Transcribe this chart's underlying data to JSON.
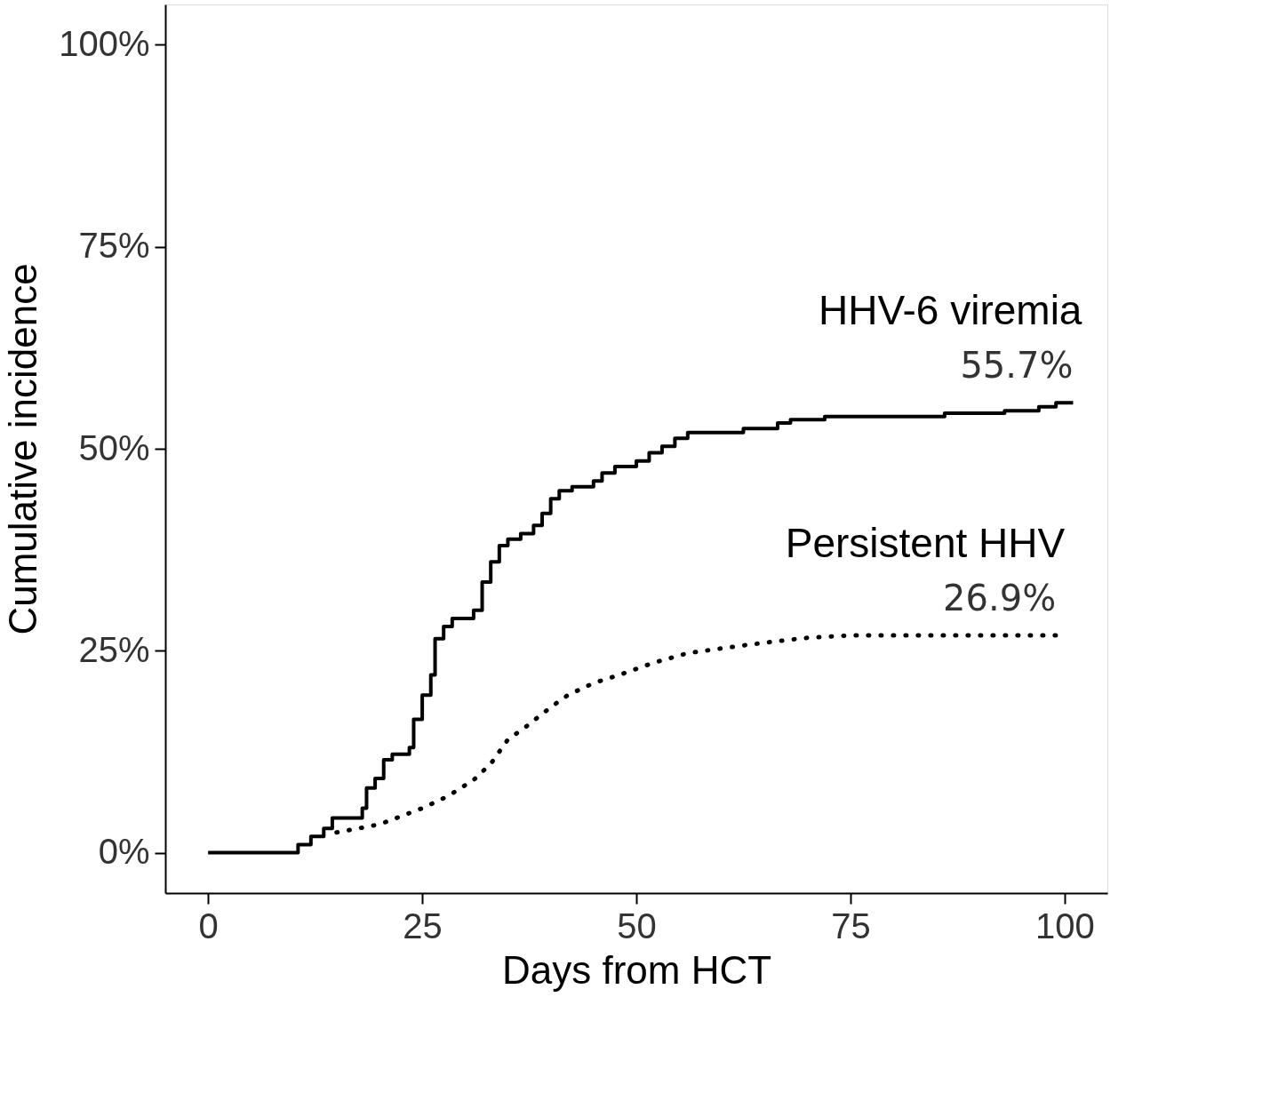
{
  "chart_data": {
    "type": "step",
    "xlabel": "Days from HCT",
    "ylabel": "Cumulative incidence",
    "xlim": [
      -5,
      105
    ],
    "xticks": [
      0,
      25,
      50,
      75,
      100
    ],
    "ylim": [
      -5,
      105
    ],
    "yticks": [
      {
        "value": 0,
        "label": "0%"
      },
      {
        "value": 25,
        "label": "25%"
      },
      {
        "value": 50,
        "label": "50%"
      },
      {
        "value": 75,
        "label": "75%"
      },
      {
        "value": 100,
        "label": "100%"
      }
    ],
    "grid": false,
    "series": [
      {
        "color": "#000000",
        "line_style": "solid",
        "x": [
          0,
          10.5,
          12,
          13.5,
          14.5,
          18,
          18.5,
          19.5,
          20.5,
          21.5,
          23.5,
          24,
          25,
          26,
          26.5,
          27.5,
          28.5,
          31,
          32,
          33,
          34,
          35,
          36.5,
          38,
          39,
          40,
          41,
          42.5,
          45,
          46,
          47.5,
          50,
          51.5,
          53,
          54.5,
          56,
          62.5,
          66.5,
          68,
          72,
          86,
          93,
          97,
          99,
          101
        ],
        "values": [
          0,
          1,
          2,
          3,
          4.3,
          5.5,
          8,
          9.2,
          11.5,
          12.2,
          13,
          16.5,
          19.5,
          22,
          26.5,
          28,
          29,
          30,
          33.5,
          36,
          38,
          38.8,
          39.5,
          40.5,
          42,
          43.8,
          44.8,
          45.3,
          46,
          47,
          47.8,
          48.5,
          49.5,
          50.3,
          51.3,
          52,
          52.5,
          53.2,
          53.6,
          54,
          54.4,
          54.7,
          55.2,
          55.7,
          55.7
        ]
      },
      {
        "type": "line",
        "color": "#000000",
        "line_style": "dotted",
        "x": [
          15,
          20,
          25,
          28,
          31,
          33,
          35,
          37,
          40,
          42,
          45,
          48,
          52,
          56,
          60,
          65,
          70,
          75,
          99
        ],
        "values": [
          2.5,
          3.5,
          5.5,
          7,
          9,
          11,
          14,
          15.5,
          18,
          19.5,
          21,
          22,
          23.5,
          24.7,
          25.3,
          26,
          26.6,
          26.9,
          26.9
        ]
      }
    ],
    "annotations": [
      "HHV-6 viremia",
      "55.7%",
      "Persistent HHV",
      "26.9%"
    ]
  }
}
